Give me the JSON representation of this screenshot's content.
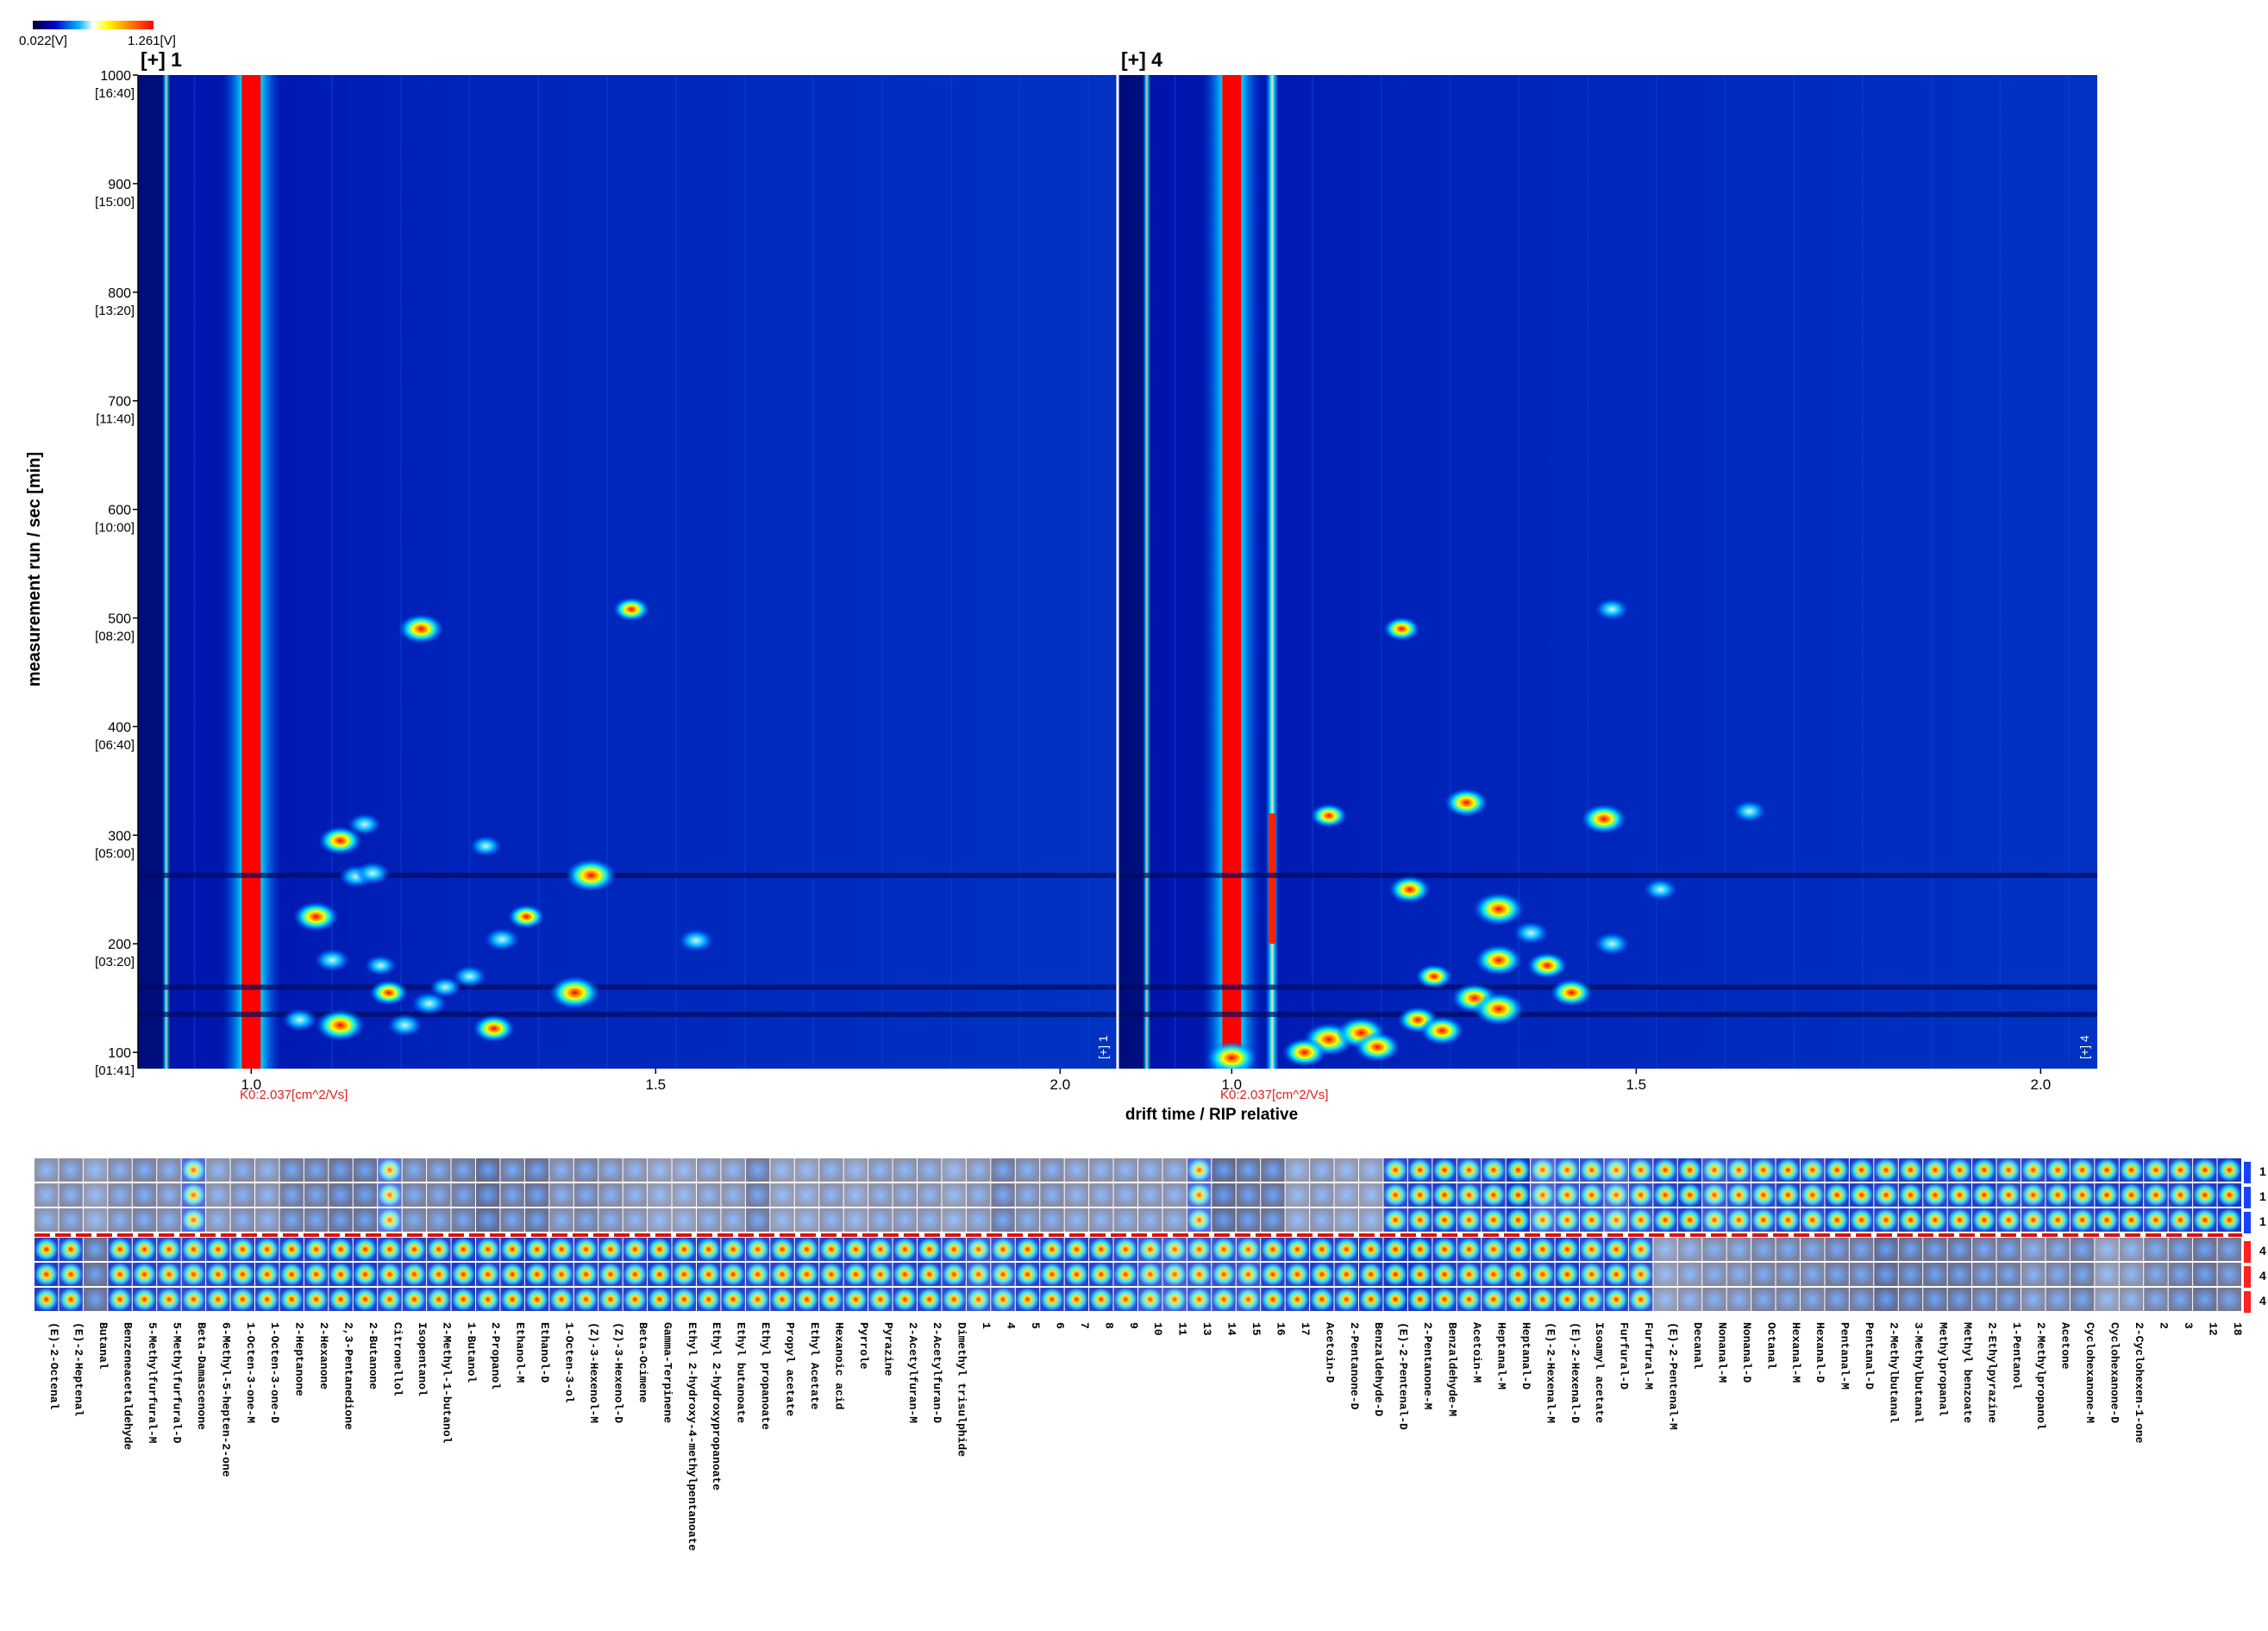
{
  "colorbar": {
    "min_label": "0.022[V]",
    "max_label": "1.261[V]"
  },
  "chart_data": [
    {
      "type": "heatmap",
      "panel_title": "[+] 1",
      "corner_label": "[+] 1",
      "xlabel": "drift time / RIP relative",
      "ylabel": "measurement run / sec [min]",
      "xlim": [
        0.86,
        2.07
      ],
      "ylim": [
        85,
        1000
      ],
      "x_ticks": [
        1.0,
        1.5,
        2.0
      ],
      "x_tick_labels": [
        "1.0",
        "1.5",
        "2.0"
      ],
      "y_ticks": [
        1000,
        900,
        800,
        700,
        600,
        500,
        400,
        300,
        200,
        100
      ],
      "y_tick_labels": [
        "1000",
        "900",
        "800",
        "700",
        "600",
        "500",
        "400",
        "300",
        "200",
        "100"
      ],
      "y_sub_labels": [
        "[16:40]",
        "[15:00]",
        "[13:20]",
        "[11:40]",
        "[10:00]",
        "[08:20]",
        "[06:40]",
        "[05:00]",
        "[03:20]",
        "[01:41]"
      ],
      "k0_label": "K0:2.037[cm^2/Vs]",
      "rip_position": 1.0,
      "spots": [
        {
          "x": 1.21,
          "y": 490,
          "i": 0.85
        },
        {
          "x": 1.47,
          "y": 508,
          "i": 0.6
        },
        {
          "x": 1.11,
          "y": 295,
          "i": 0.8
        },
        {
          "x": 1.14,
          "y": 310,
          "i": 0.5
        },
        {
          "x": 1.13,
          "y": 262,
          "i": 0.55
        },
        {
          "x": 1.15,
          "y": 265,
          "i": 0.55
        },
        {
          "x": 1.42,
          "y": 263,
          "i": 1.0
        },
        {
          "x": 1.08,
          "y": 225,
          "i": 0.85
        },
        {
          "x": 1.34,
          "y": 225,
          "i": 0.6
        },
        {
          "x": 1.31,
          "y": 204,
          "i": 0.55
        },
        {
          "x": 1.55,
          "y": 203,
          "i": 0.55
        },
        {
          "x": 1.1,
          "y": 185,
          "i": 0.55
        },
        {
          "x": 1.16,
          "y": 180,
          "i": 0.45
        },
        {
          "x": 1.27,
          "y": 170,
          "i": 0.5
        },
        {
          "x": 1.17,
          "y": 155,
          "i": 0.65
        },
        {
          "x": 1.4,
          "y": 155,
          "i": 1.0
        },
        {
          "x": 1.22,
          "y": 145,
          "i": 0.55
        },
        {
          "x": 1.11,
          "y": 125,
          "i": 0.95
        },
        {
          "x": 1.06,
          "y": 130,
          "i": 0.55
        },
        {
          "x": 1.19,
          "y": 125,
          "i": 0.55
        },
        {
          "x": 1.3,
          "y": 122,
          "i": 0.75
        },
        {
          "x": 1.24,
          "y": 160,
          "i": 0.45
        },
        {
          "x": 1.29,
          "y": 290,
          "i": 0.45
        }
      ]
    },
    {
      "type": "heatmap",
      "panel_title": "[+] 4",
      "corner_label": "[+] 4",
      "xlabel": "drift time / RIP relative",
      "ylabel": "",
      "xlim": [
        0.86,
        2.07
      ],
      "ylim": [
        85,
        1000
      ],
      "x_ticks": [
        1.0,
        1.5,
        2.0
      ],
      "x_tick_labels": [
        "1.0",
        "1.5",
        "2.0"
      ],
      "k0_label": "K0:2.037[cm^2/Vs]",
      "rip_position": 1.0,
      "spots": [
        {
          "x": 1.21,
          "y": 490,
          "i": 0.6
        },
        {
          "x": 1.47,
          "y": 508,
          "i": 0.5
        },
        {
          "x": 1.29,
          "y": 330,
          "i": 0.8
        },
        {
          "x": 1.12,
          "y": 318,
          "i": 0.6
        },
        {
          "x": 1.46,
          "y": 315,
          "i": 0.85
        },
        {
          "x": 1.64,
          "y": 322,
          "i": 0.5
        },
        {
          "x": 1.33,
          "y": 232,
          "i": 1.0
        },
        {
          "x": 1.22,
          "y": 250,
          "i": 0.75
        },
        {
          "x": 1.53,
          "y": 250,
          "i": 0.5
        },
        {
          "x": 1.33,
          "y": 185,
          "i": 0.9
        },
        {
          "x": 1.39,
          "y": 180,
          "i": 0.7
        },
        {
          "x": 1.3,
          "y": 150,
          "i": 0.85
        },
        {
          "x": 1.33,
          "y": 140,
          "i": 1.0
        },
        {
          "x": 1.42,
          "y": 155,
          "i": 0.75
        },
        {
          "x": 1.23,
          "y": 130,
          "i": 0.7
        },
        {
          "x": 1.12,
          "y": 112,
          "i": 1.0
        },
        {
          "x": 1.16,
          "y": 118,
          "i": 0.95
        },
        {
          "x": 1.26,
          "y": 120,
          "i": 0.8
        },
        {
          "x": 1.18,
          "y": 105,
          "i": 0.85
        },
        {
          "x": 1.0,
          "y": 95,
          "i": 1.0
        },
        {
          "x": 1.09,
          "y": 100,
          "i": 0.8
        },
        {
          "x": 1.47,
          "y": 200,
          "i": 0.55
        },
        {
          "x": 1.25,
          "y": 170,
          "i": 0.6
        },
        {
          "x": 1.37,
          "y": 210,
          "i": 0.55
        }
      ]
    },
    {
      "type": "heatmap",
      "subtype": "gallery-fingerprint",
      "row_labels": [
        "1",
        "1",
        "1",
        "4",
        "4",
        "4"
      ],
      "columns": [
        "(E)-2-Octenal",
        "(E)-2-Heptenal",
        "Butanal",
        "Benzeneacetaldehyde",
        "5-Methylfurfural-M",
        "5-Methylfurfural-D",
        "Beta-Damascenone",
        "6-Methyl-5-hepten-2-one",
        "1-Octen-3-one-M",
        "1-Octen-3-one-D",
        "2-Heptanone",
        "2-Hexanone",
        "2,3-Pentanedione",
        "2-Butanone",
        "Citronellol",
        "Isopentanol",
        "2-Methyl-1-butanol",
        "1-Butanol",
        "2-Propanol",
        "Ethanol-M",
        "Ethanol-D",
        "1-Octen-3-ol",
        "(Z)-3-Hexenol-M",
        "(Z)-3-Hexenol-D",
        "Beta-Ocimene",
        "Gamma-Terpinene",
        "Ethyl 2-hydroxy-4-methylpentanoate",
        "Ethyl 2-hydroxypropanoate",
        "Ethyl butanoate",
        "Ethyl propanoate",
        "Propyl acetate",
        "Ethyl Acetate",
        "Hexanoic acid",
        "Pyrrole",
        "Pyrazine",
        "2-Acetylfuran-M",
        "2-Acetylfuran-D",
        "Dimethyl trisulphide",
        "1",
        "4",
        "5",
        "6",
        "7",
        "8",
        "9",
        "10",
        "11",
        "13",
        "14",
        "15",
        "16",
        "17",
        "Acetoin-D",
        "2-Pentanone-D",
        "Benzaldehyde-D",
        "(E)-2-Pentenal-D",
        "2-Pentanone-M",
        "Benzaldehyde-M",
        "Acetoin-M",
        "Heptanal-M",
        "Heptanal-D",
        "(E)-2-Hexenal-M",
        "(E)-2-Hexenal-D",
        "Isoamyl acetate",
        "Furfural-D",
        "Furfural-M",
        "(E)-2-Pentenal-M",
        "Decanal",
        "Nonanal-M",
        "Nonanal-D",
        "Octanal",
        "Hexanal-M",
        "Hexanal-D",
        "Pentanal-M",
        "Pentanal-D",
        "2-Methylbutanal",
        "3-Methylbutanal",
        "Methylpropanal",
        "Methyl benzoate",
        "2-Ethylpyrazine",
        "1-Pentanol",
        "2-Methylpropanol",
        "Acetone",
        "Cyclohexanone-M",
        "Cyclohexanone-D",
        "2-Cyclohexen-1-one",
        "2",
        "3",
        "12",
        "18"
      ],
      "values_top": [
        0.15,
        0.2,
        0.1,
        0.2,
        0.25,
        0.2,
        0.55,
        0.15,
        0.2,
        0.15,
        0.3,
        0.3,
        0.35,
        0.35,
        0.5,
        0.25,
        0.25,
        0.3,
        0.4,
        0.3,
        0.35,
        0.2,
        0.25,
        0.2,
        0.15,
        0.1,
        0.1,
        0.15,
        0.15,
        0.3,
        0.1,
        0.1,
        0.15,
        0.1,
        0.15,
        0.15,
        0.15,
        0.1,
        0.15,
        0.3,
        0.2,
        0.2,
        0.15,
        0.15,
        0.15,
        0.15,
        0.15,
        0.55,
        0.4,
        0.35,
        0.35,
        0.1,
        0.15,
        0.1,
        0.1,
        0.8,
        0.85,
        0.9,
        0.8,
        0.85,
        0.95,
        0.6,
        0.7,
        0.75,
        0.6,
        0.75,
        0.85,
        0.9,
        0.7,
        0.75,
        0.8,
        0.85,
        0.8,
        0.9,
        0.9,
        0.85,
        0.9,
        0.85,
        0.85,
        0.9,
        0.8,
        0.8,
        0.85,
        0.85,
        0.9,
        0.9,
        0.85,
        0.85,
        0.9,
        0.95
      ],
      "values_bottom": [
        0.9,
        0.85,
        0.35,
        0.85,
        0.85,
        0.8,
        0.8,
        0.85,
        0.85,
        0.85,
        0.9,
        0.85,
        0.9,
        0.9,
        0.85,
        0.85,
        0.85,
        0.9,
        0.85,
        0.9,
        0.9,
        0.85,
        0.85,
        0.85,
        0.85,
        0.9,
        0.85,
        0.85,
        0.85,
        0.8,
        0.85,
        0.85,
        0.85,
        0.85,
        0.8,
        0.85,
        0.85,
        0.8,
        0.7,
        0.75,
        0.85,
        0.85,
        0.85,
        0.85,
        0.8,
        0.7,
        0.65,
        0.7,
        0.75,
        0.7,
        0.85,
        0.85,
        0.9,
        0.85,
        0.9,
        0.95,
        0.95,
        0.9,
        0.85,
        0.85,
        0.9,
        0.85,
        0.9,
        0.8,
        0.85,
        0.75,
        0.1,
        0.15,
        0.2,
        0.2,
        0.25,
        0.25,
        0.25,
        0.3,
        0.3,
        0.4,
        0.35,
        0.35,
        0.35,
        0.3,
        0.3,
        0.2,
        0.25,
        0.3,
        0.1,
        0.15,
        0.25,
        0.3,
        0.35,
        0.3
      ]
    }
  ]
}
